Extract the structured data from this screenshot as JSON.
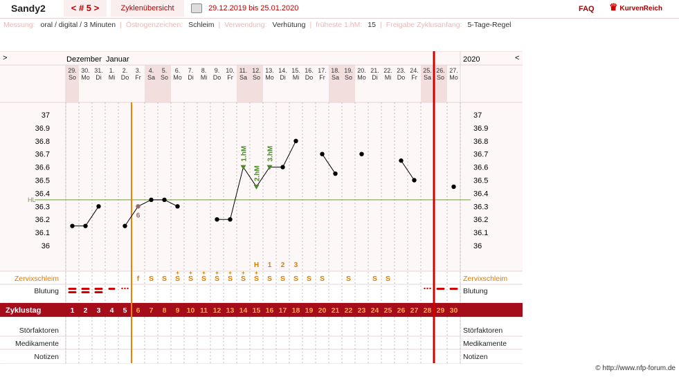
{
  "header": {
    "brand": "Sandy2",
    "cycle_nav": "< # 5 >",
    "overview_tab": "Zyklenübersicht",
    "date_range": "29.12.2019 bis 25.01.2020",
    "faq": "FAQ",
    "site": "KurvenReich",
    "colors": {
      "accent": "#aa0000",
      "tab_bg": "#fbeeee"
    }
  },
  "info": {
    "messung_label": "Messung:",
    "messung_value": "oral / digital / 3 Minuten",
    "oestro_label": "Östrogenzeichen:",
    "oestro_value": "Schleim",
    "verw_label": "Verwendung:",
    "verw_value": "Verhütung",
    "fhm_label": "früheste 1.hM:",
    "fhm_value": "15",
    "freigabe_label": "Freigabe Zyklusanfang:",
    "freigabe_value": "5-Tage-Regel"
  },
  "chart": {
    "left_arrow": ">",
    "right_arrow": "<",
    "month1": "Dezember",
    "month2": "Januar",
    "year": "2020",
    "days": [
      "29.",
      "30.",
      "31.",
      "1.",
      "2.",
      "3.",
      "4.",
      "5.",
      "6.",
      "7.",
      "8.",
      "9.",
      "10.",
      "11.",
      "12.",
      "13.",
      "14.",
      "15.",
      "16.",
      "17.",
      "18.",
      "19.",
      "20.",
      "21.",
      "22.",
      "23.",
      "24.",
      "25.",
      "26.",
      "27."
    ],
    "weekdays": [
      "So",
      "Mo",
      "Di",
      "Mi",
      "Do",
      "Fr",
      "Sa",
      "So",
      "Mo",
      "Di",
      "Mi",
      "Do",
      "Fr",
      "Sa",
      "So",
      "Mo",
      "Di",
      "Mi",
      "Do",
      "Fr",
      "Sa",
      "So",
      "Mo",
      "Di",
      "Mi",
      "Do",
      "Fr",
      "Sa",
      "So",
      "Mo"
    ],
    "weekend_days": [
      0,
      6,
      7,
      13,
      14,
      20,
      21,
      27,
      28
    ],
    "y_ticks": [
      "37",
      "36.9",
      "36.8",
      "36.7",
      "36.6",
      "36.5",
      "36.4",
      "36.3",
      "36.2",
      "36.1",
      "36"
    ],
    "temps": [
      36.15,
      36.15,
      36.3,
      null,
      36.15,
      36.3,
      36.35,
      36.35,
      36.3,
      null,
      null,
      36.2,
      36.2,
      36.6,
      36.45,
      36.6,
      36.6,
      36.8,
      null,
      36.7,
      36.55,
      null,
      36.7,
      null,
      null,
      36.65,
      36.5,
      null,
      null,
      36.45
    ],
    "line_breaks_after": [
      2,
      10,
      17,
      20,
      22,
      26
    ],
    "hl_label": "HL",
    "hl_value": 36.35,
    "excluded_label": "6",
    "hm_labels": [
      "1.hM",
      "2.hM",
      "3.hM"
    ],
    "hm_days": [
      13,
      14,
      15
    ],
    "peak_labels": [
      "H",
      "1",
      "2",
      "3"
    ],
    "zervix_label": "Zervixschleim",
    "zervix": [
      "",
      "",
      "",
      "",
      "",
      "f",
      "S",
      "S",
      "S",
      "S",
      "S",
      "S",
      "S",
      "S",
      "S",
      "S",
      "S",
      "S",
      "S",
      "S",
      "",
      "S",
      "",
      "S",
      "S",
      "",
      "",
      "",
      "",
      ""
    ],
    "blutung_label": "Blutung",
    "zyklustag_label": "Zyklustag",
    "zyklustage": [
      "1",
      "2",
      "3",
      "4",
      "5",
      "6",
      "7",
      "8",
      "9",
      "10",
      "11",
      "12",
      "13",
      "14",
      "15",
      "16",
      "17",
      "18",
      "19",
      "20",
      "21",
      "22",
      "23",
      "24",
      "25",
      "26",
      "27",
      "28",
      "29",
      "30"
    ],
    "stoer_label": "Störfaktoren",
    "medi_label": "Medikamente",
    "notizen_label": "Notizen",
    "colors": {
      "zyklus_bg": "#a50d1a",
      "zyklus_text_white": "#ffffff",
      "zyklus_text_orange": "#ffa64d",
      "zervix": "#e07a00",
      "coverline": "#6b9a3a",
      "cycle_start": "#f08000",
      "cycle_end": "#d00000",
      "hm": "#4b8a2a",
      "blood": "#d00000"
    }
  },
  "footer": {
    "copyright": "© http://www.nfp-forum.de"
  }
}
